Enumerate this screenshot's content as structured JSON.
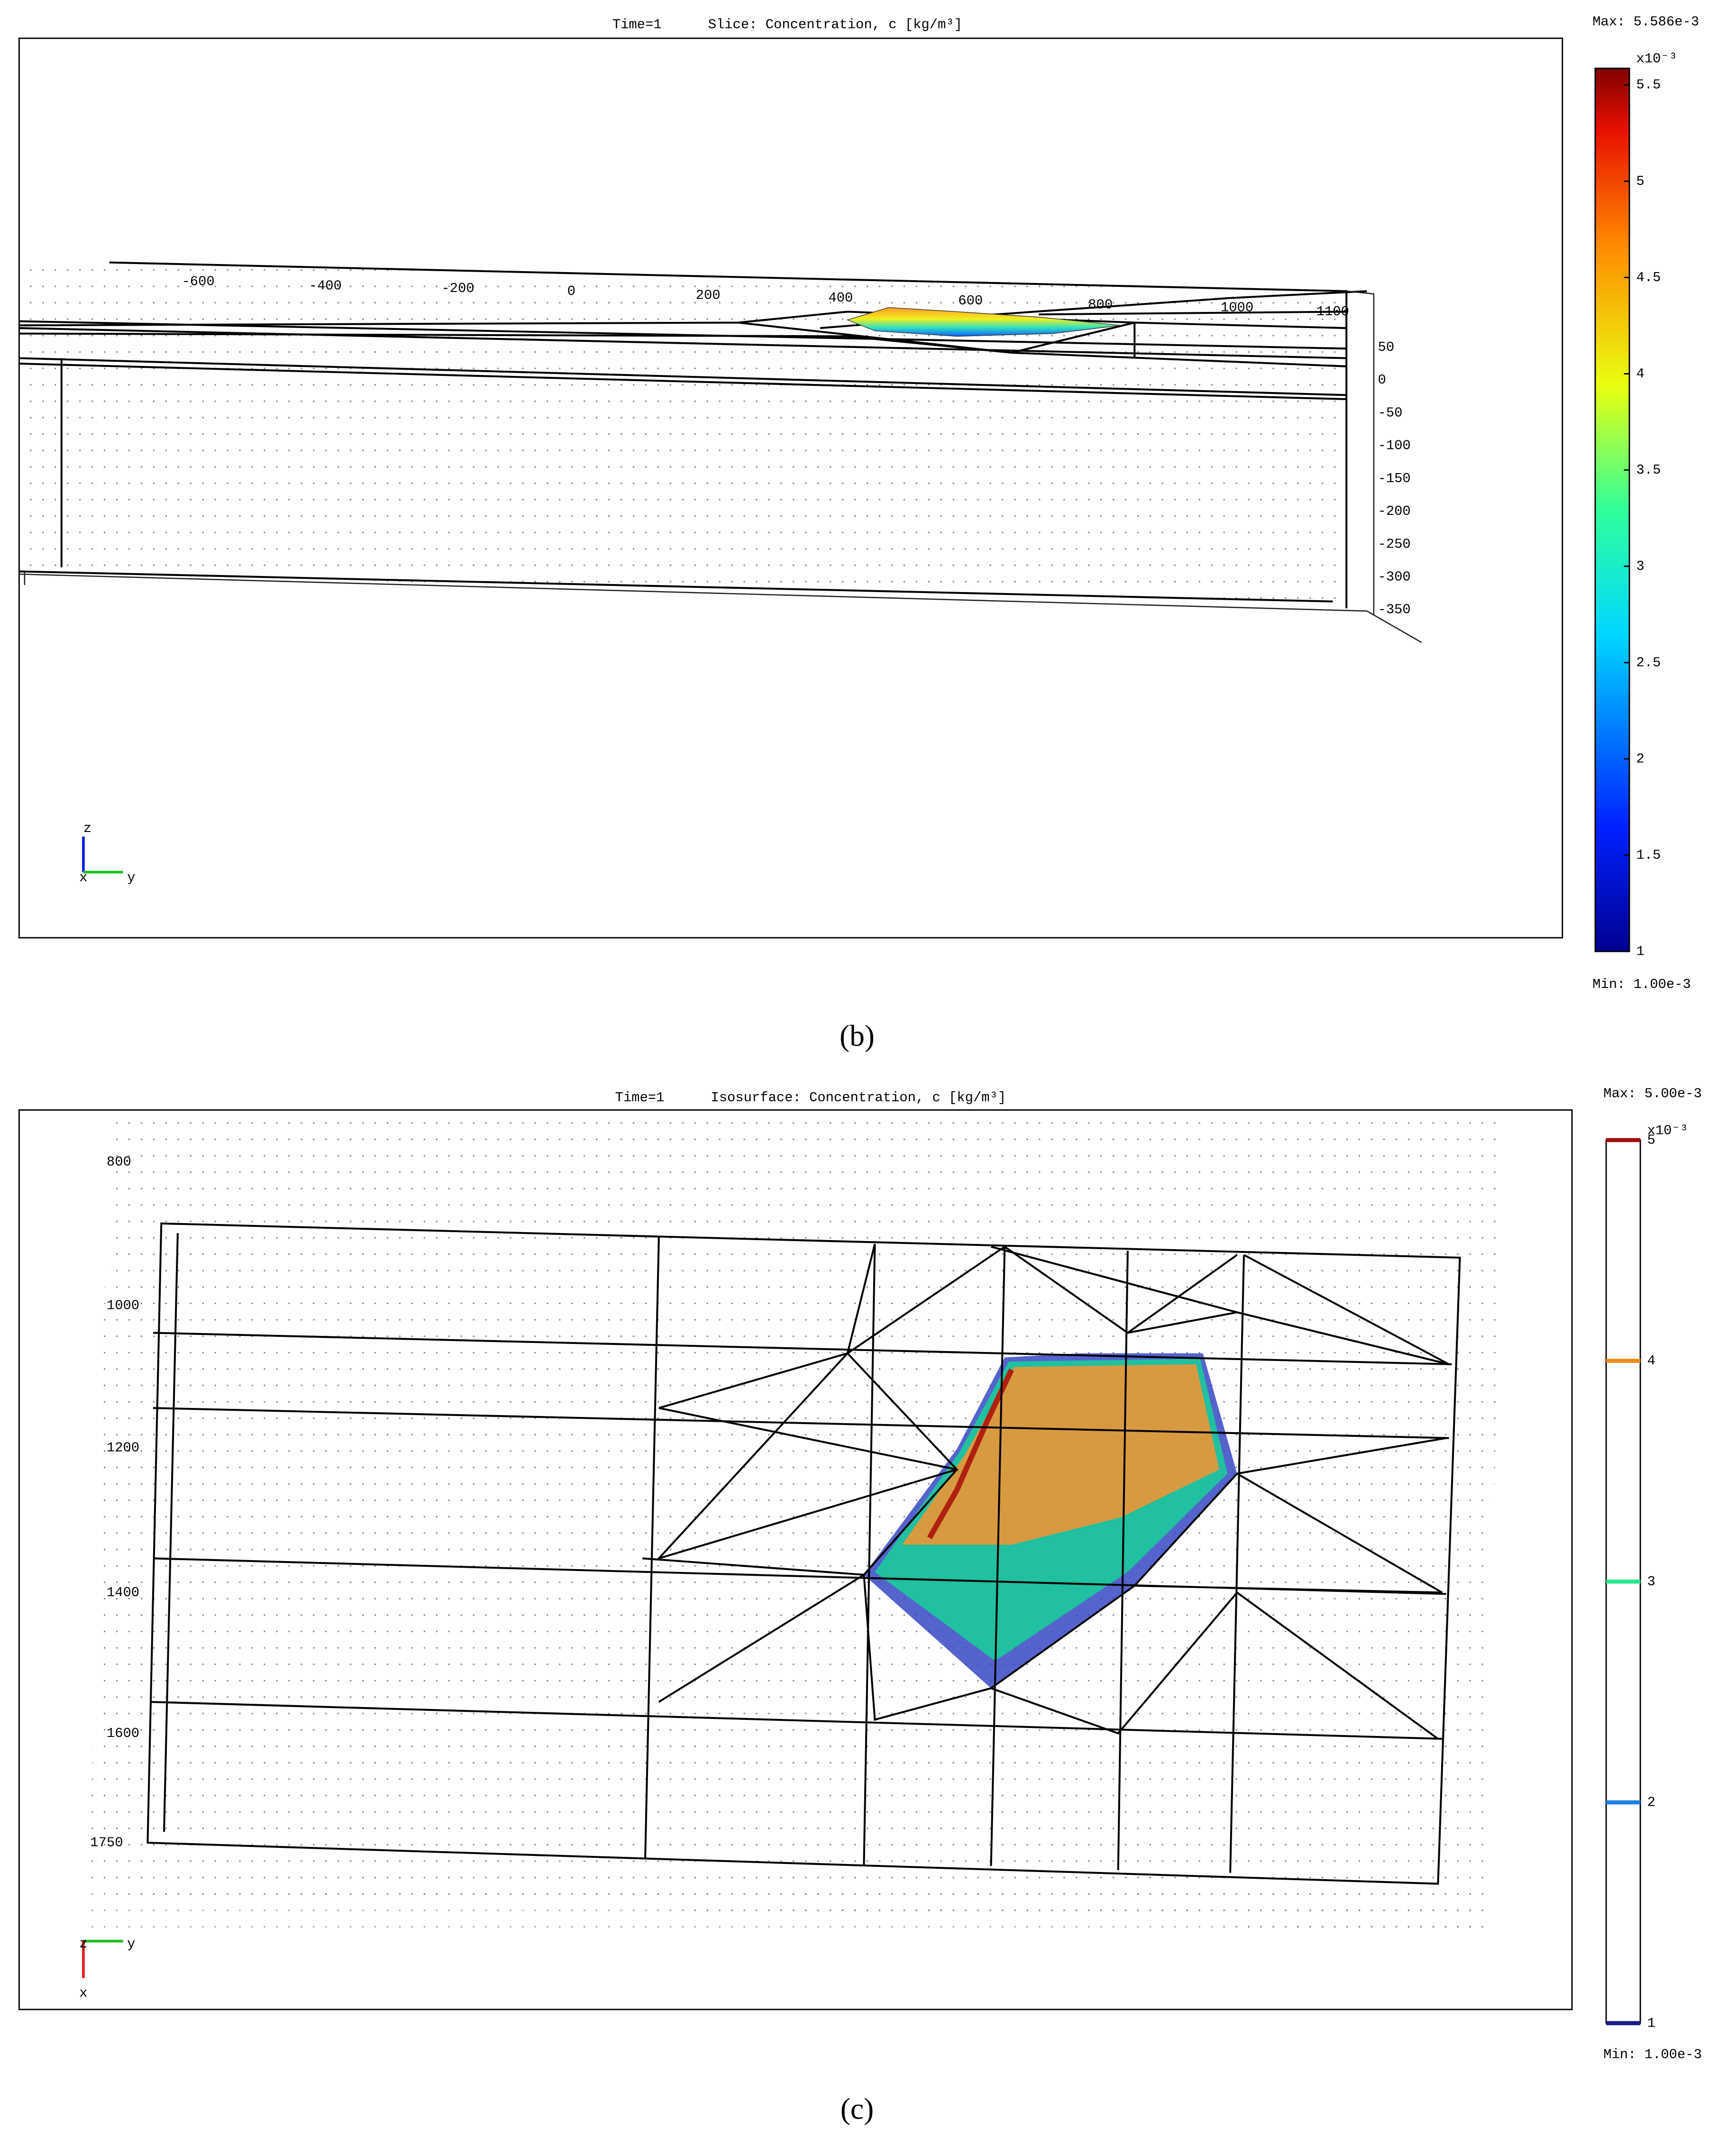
{
  "panels": [
    {
      "time": "Time=1",
      "title": "Slice: Concentration, c [kg/m³]",
      "max_label": "Max: 5.586e-3",
      "min_label": "Min: 1.00e-3",
      "colorbar_exponent": "x10⁻³",
      "colorbar_range": [
        1,
        5.586
      ],
      "colorbar_ticks": [
        1,
        1.5,
        2,
        2.5,
        3,
        3.5,
        4,
        4.5,
        5,
        5.5
      ],
      "y_axis_labels": [
        -600,
        -400,
        -200,
        0,
        200,
        400,
        600,
        800,
        1000,
        1100
      ],
      "z_axis_labels": [
        50,
        0,
        -50,
        -100,
        -150,
        -200,
        -250,
        -300,
        -350
      ],
      "triad": [
        "z",
        "x",
        "y"
      ],
      "caption": "(b)"
    },
    {
      "time": "Time=1",
      "title": "Isosurface: Concentration, c [kg/m³]",
      "max_label": "Max: 5.00e-3",
      "min_label": "Min: 1.00e-3",
      "colorbar_exponent": "x10⁻³",
      "colorbar_range": [
        1,
        5
      ],
      "colorbar_ticks": [
        1,
        2,
        3,
        4,
        5
      ],
      "colorbar_colors": [
        "#1a1a8c",
        "#1e7fe0",
        "#2de88c",
        "#f08a1e",
        "#a01010"
      ],
      "x_axis_labels": [
        800,
        1000,
        1200,
        1400,
        1600,
        1750
      ],
      "triad": [
        "z",
        "y",
        "x"
      ],
      "caption": "(c)"
    }
  ]
}
